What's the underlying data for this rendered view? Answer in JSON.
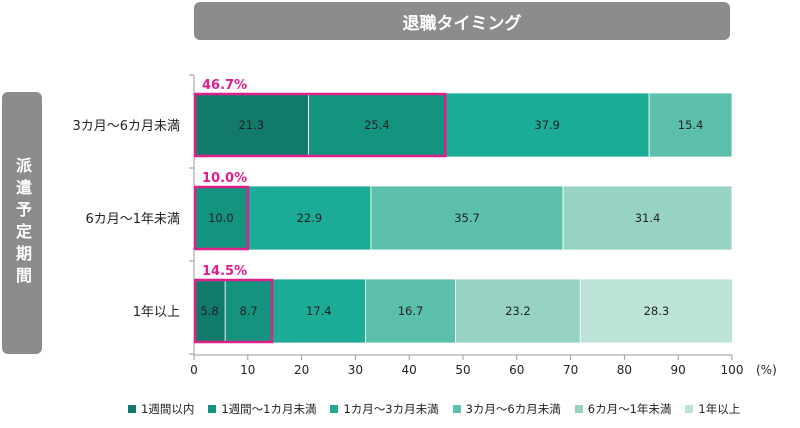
{
  "chart_data": {
    "type": "bar",
    "orientation": "horizontal",
    "stacked": true,
    "title": "退職タイミング",
    "ylabel": "派遣予定期間",
    "xlabel": "",
    "x_unit_label": "(%)",
    "xlim": [
      0,
      100
    ],
    "x_ticks": [
      0,
      10,
      20,
      30,
      40,
      50,
      60,
      70,
      80,
      90,
      100
    ],
    "categories": [
      "3カ月～6カ月未満",
      "6カ月～1年未満",
      "1年以上"
    ],
    "series": [
      {
        "name": "1週間以内",
        "color": "#127a6b",
        "values": [
          21.3,
          null,
          5.8
        ]
      },
      {
        "name": "1週間～1カ月未満",
        "color": "#14947f",
        "values": [
          25.4,
          10.0,
          8.7
        ]
      },
      {
        "name": "1カ月～3カ月未満",
        "color": "#1bab97",
        "values": [
          37.9,
          22.9,
          17.4
        ]
      },
      {
        "name": "3カ月～6カ月未満",
        "color": "#5cbfab",
        "values": [
          15.4,
          35.7,
          16.7
        ]
      },
      {
        "name": "6カ月～1年未満",
        "color": "#96d3c5",
        "values": [
          null,
          31.4,
          23.2
        ]
      },
      {
        "name": "1年以上",
        "color": "#bde3d9",
        "values": [
          null,
          null,
          28.3
        ]
      }
    ],
    "highlights": [
      {
        "label": "46.7%",
        "color": "#e0208a"
      },
      {
        "label": "10.0%",
        "color": "#e0208a"
      },
      {
        "label": "14.5%",
        "color": "#e0208a"
      }
    ],
    "grid": false,
    "legend_position": "bottom"
  }
}
